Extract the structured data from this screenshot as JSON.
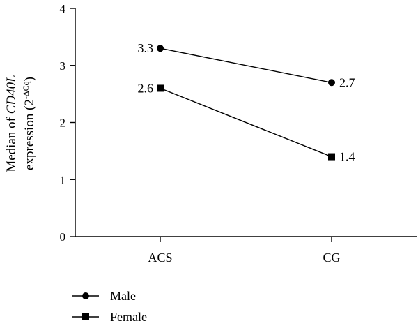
{
  "chart_data": {
    "type": "line",
    "categories": [
      "ACS",
      "CG"
    ],
    "series": [
      {
        "name": "Male",
        "marker": "circle",
        "values": [
          3.3,
          2.7
        ],
        "labels": [
          "3.3",
          "2.7"
        ]
      },
      {
        "name": "Female",
        "marker": "square",
        "values": [
          2.6,
          1.4
        ],
        "labels": [
          "2.6",
          "1.4"
        ]
      }
    ],
    "ylim": [
      0,
      4
    ],
    "yticks": [
      "0",
      "1",
      "2",
      "3",
      "4"
    ],
    "ylabel": {
      "line1_prefix": "Median of ",
      "line1_italic": "CD40L",
      "line2_prefix": "expression (2",
      "line2_sup": "-ΔCq",
      "line2_suffix": ")"
    },
    "grid": false,
    "legend_position": "bottom-left",
    "line_color": "#000000"
  }
}
